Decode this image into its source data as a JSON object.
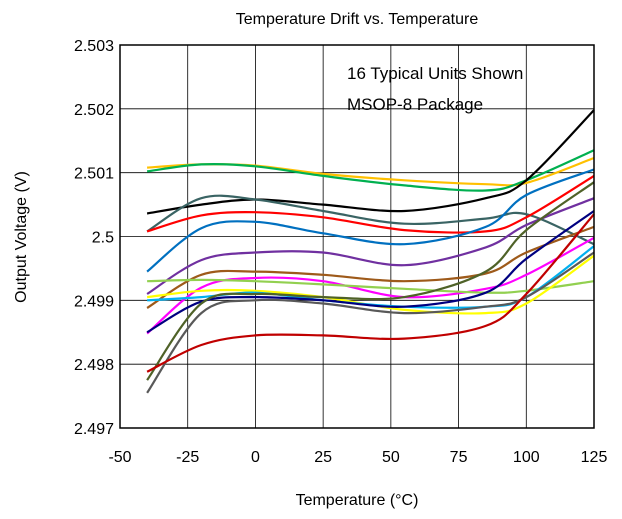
{
  "chart_data": {
    "type": "line",
    "title": "Temperature Drift vs. Temperature",
    "xlabel": "Temperature (°C)",
    "ylabel": "Output Voltage (V)",
    "xlim": [
      -50,
      125
    ],
    "ylim": [
      2.497,
      2.503
    ],
    "xticks": [
      -50,
      -25,
      0,
      25,
      50,
      75,
      100,
      125
    ],
    "xtick_labels": [
      "-50",
      "-25",
      "0",
      "25",
      "50",
      "75",
      "100",
      "125"
    ],
    "yticks": [
      2.497,
      2.498,
      2.499,
      2.5,
      2.501,
      2.502,
      2.503
    ],
    "ytick_labels": [
      "2.497",
      "2.498",
      "2.499",
      "2.5",
      "2.501",
      "2.502",
      "2.503"
    ],
    "grid": true,
    "annotations": [
      "16 Typical Units Shown",
      "MSOP-8 Package"
    ],
    "series": [
      {
        "color": "#ffc000",
        "x": [
          -40,
          -20,
          0,
          25,
          55,
          85,
          100,
          125
        ],
        "y": [
          2.50108,
          2.50113,
          2.50111,
          2.50098,
          2.50088,
          2.50082,
          2.50084,
          2.50123
        ]
      },
      {
        "color": "#00b050",
        "x": [
          -40,
          -20,
          0,
          25,
          55,
          85,
          100,
          125
        ],
        "y": [
          2.50102,
          2.50113,
          2.5011,
          2.50095,
          2.5008,
          2.50072,
          2.50088,
          2.50135
        ]
      },
      {
        "color": "#000000",
        "x": [
          -40,
          -20,
          0,
          25,
          55,
          85,
          100,
          125
        ],
        "y": [
          2.50036,
          2.5005,
          2.50058,
          2.5005,
          2.5004,
          2.5006,
          2.50088,
          2.50198
        ]
      },
      {
        "color": "#3a6464",
        "x": [
          -40,
          -20,
          0,
          25,
          55,
          85,
          100,
          125
        ],
        "y": [
          2.50008,
          2.5006,
          2.50058,
          2.5004,
          2.5002,
          2.50028,
          2.50035,
          2.49988
        ]
      },
      {
        "color": "#ff0000",
        "x": [
          -40,
          -20,
          0,
          25,
          55,
          85,
          100,
          125
        ],
        "y": [
          2.50008,
          2.50033,
          2.50038,
          2.5003,
          2.5001,
          2.50008,
          2.5003,
          2.50095
        ]
      },
      {
        "color": "#0070c0",
        "x": [
          -40,
          -20,
          0,
          25,
          55,
          85,
          100,
          125
        ],
        "y": [
          2.49945,
          2.50013,
          2.50023,
          2.50005,
          2.49988,
          2.50015,
          2.50065,
          2.50105
        ]
      },
      {
        "color": "#7030a0",
        "x": [
          -40,
          -20,
          0,
          25,
          55,
          85,
          100,
          125
        ],
        "y": [
          2.4991,
          2.49963,
          2.49975,
          2.49975,
          2.49955,
          2.49983,
          2.50018,
          2.5006
        ]
      },
      {
        "color": "#9e5a1a",
        "x": [
          -40,
          -20,
          0,
          25,
          55,
          85,
          100,
          125
        ],
        "y": [
          2.49888,
          2.4994,
          2.49945,
          2.4994,
          2.4993,
          2.49942,
          2.49975,
          2.50015
        ]
      },
      {
        "color": "#ff00ff",
        "x": [
          -40,
          -20,
          0,
          25,
          55,
          85,
          100,
          125
        ],
        "y": [
          2.49848,
          2.4992,
          2.49935,
          2.4993,
          2.49905,
          2.49918,
          2.4994,
          2.49998
        ]
      },
      {
        "color": "#92d050",
        "x": [
          -40,
          -20,
          0,
          25,
          55,
          85,
          100,
          125
        ],
        "y": [
          2.4993,
          2.49932,
          2.4993,
          2.49925,
          2.49918,
          2.49912,
          2.49915,
          2.4993
        ]
      },
      {
        "color": "#ffff00",
        "x": [
          -40,
          -20,
          0,
          25,
          55,
          85,
          100,
          125
        ],
        "y": [
          2.49905,
          2.49915,
          2.49915,
          2.49905,
          2.49885,
          2.4988,
          2.49895,
          2.4997
        ]
      },
      {
        "color": "#00b0f0",
        "x": [
          -40,
          -20,
          0,
          25,
          55,
          85,
          100,
          125
        ],
        "y": [
          2.499,
          2.49905,
          2.49912,
          2.499,
          2.4989,
          2.4989,
          2.49905,
          2.49985
        ]
      },
      {
        "color": "#000080",
        "x": [
          -40,
          -20,
          0,
          25,
          55,
          85,
          100,
          125
        ],
        "y": [
          2.4985,
          2.49898,
          2.49905,
          2.499,
          2.4989,
          2.49912,
          2.49965,
          2.5004
        ]
      },
      {
        "color": "#595959",
        "x": [
          -40,
          -20,
          0,
          25,
          55,
          85,
          100,
          125
        ],
        "y": [
          2.49755,
          2.4988,
          2.499,
          2.49895,
          2.4988,
          2.4989,
          2.49905,
          2.49975
        ]
      },
      {
        "color": "#4f6228",
        "x": [
          -40,
          -20,
          0,
          25,
          55,
          85,
          100,
          125
        ],
        "y": [
          2.49775,
          2.49895,
          2.4991,
          2.49905,
          2.49905,
          2.49945,
          2.5001,
          2.50085
        ]
      },
      {
        "color": "#c00000",
        "x": [
          -40,
          -20,
          0,
          25,
          55,
          85,
          100,
          125
        ],
        "y": [
          2.49788,
          2.4983,
          2.49845,
          2.49845,
          2.4984,
          2.4986,
          2.4991,
          2.50035
        ]
      }
    ]
  }
}
